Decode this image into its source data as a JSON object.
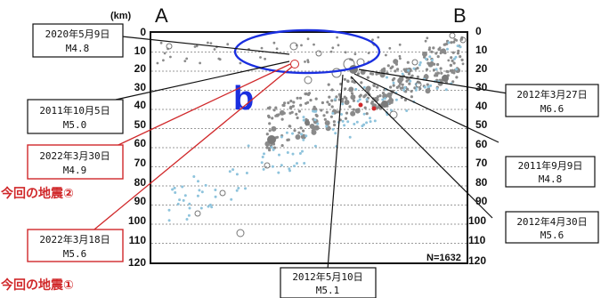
{
  "diagram": {
    "corner_left": "A",
    "corner_right": "B",
    "depth_unit": "(km)",
    "depth_ticks": [
      "0",
      "10",
      "20",
      "30",
      "40",
      "50",
      "60",
      "70",
      "80",
      "90",
      "100",
      "110",
      "120"
    ],
    "count_label": "N=1632",
    "region_marker": "b",
    "colors": {
      "callout_red": "#d0282a",
      "region_blue": "#1a2fe0",
      "dot_grey": "#8a8a8a",
      "dot_blue": "#8ec3dc"
    }
  },
  "labels": {
    "q2020": {
      "date": "2020年5月9日",
      "mag": "M4.8"
    },
    "q2011oct": {
      "date": "2011年10月5日",
      "mag": "M5.0"
    },
    "q2022mar30": {
      "date": "2022年3月30日",
      "mag": "M4.9"
    },
    "q2022mar18": {
      "date": "2022年3月18日",
      "mag": "M5.6"
    },
    "q2012mar27": {
      "date": "2012年3月27日",
      "mag": "M6.6"
    },
    "q2011sep": {
      "date": "2011年9月9日",
      "mag": "M4.8"
    },
    "q2012apr30": {
      "date": "2012年4月30日",
      "mag": "M5.6"
    },
    "q2012may10": {
      "date": "2012年5月10日",
      "mag": "M5.1"
    }
  },
  "annotations": {
    "quake2": "今回の地震②",
    "quake1": "今回の地震①"
  }
}
